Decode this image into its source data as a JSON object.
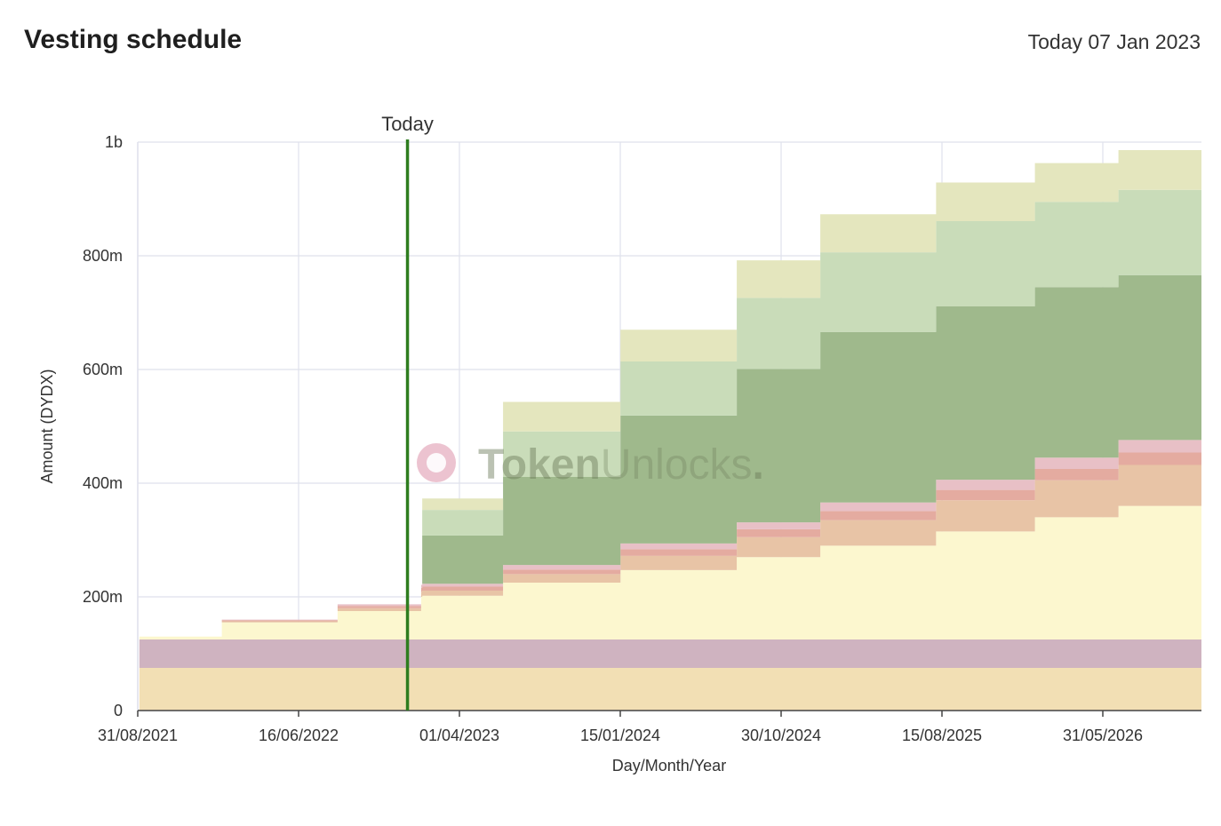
{
  "header": {
    "title": "Vesting schedule",
    "date_label": "Today 07 Jan 2023"
  },
  "watermark": {
    "part1": "Token",
    "part2": "Unlocks",
    "dot": "."
  },
  "chart_data": {
    "type": "area",
    "stacked": true,
    "step": true,
    "title": "",
    "xlabel": "Day/Month/Year",
    "ylabel": "Amount (DYDX)",
    "x_ticks": [
      "31/08/2021",
      "16/06/2022",
      "01/04/2023",
      "15/01/2024",
      "30/10/2024",
      "15/08/2025",
      "31/05/2026"
    ],
    "x_range": [
      "2021-08-31",
      "2026-12-31"
    ],
    "y_ticks": [
      {
        "value": 0,
        "label": "0"
      },
      {
        "value": 200000000,
        "label": "200m"
      },
      {
        "value": 400000000,
        "label": "400m"
      },
      {
        "value": 600000000,
        "label": "600m"
      },
      {
        "value": 800000000,
        "label": "800m"
      },
      {
        "value": 1000000000,
        "label": "1b"
      }
    ],
    "ylim": [
      0,
      1000000000
    ],
    "grid": true,
    "today_marker": {
      "label": "Today",
      "date": "2023-01-07",
      "color": "#2e7d1f"
    },
    "dates": [
      "2021-08-31",
      "2021-09-03",
      "2022-02-01",
      "2022-09-01",
      "2023-02-01",
      "2023-02-03",
      "2023-07-01",
      "2024-02-01",
      "2024-09-01",
      "2025-02-01",
      "2025-09-01",
      "2026-03-01",
      "2026-08-01",
      "2026-12-31"
    ],
    "series": [
      {
        "color": "#f2dfb4",
        "values": [
          0,
          75000000,
          75000000,
          75000000,
          75000000,
          75000000,
          75000000,
          75000000,
          75000000,
          75000000,
          75000000,
          75000000,
          75000000,
          75000000
        ]
      },
      {
        "color": "#cfb3c0",
        "values": [
          0,
          50000000,
          50000000,
          50000000,
          50000000,
          50000000,
          50000000,
          50000000,
          50000000,
          50000000,
          50000000,
          50000000,
          50000000,
          50000000
        ]
      },
      {
        "color": "#fcf7cf",
        "values": [
          0,
          5000000,
          30000000,
          50000000,
          75000000,
          77000000,
          100000000,
          122000000,
          145000000,
          165000000,
          190000000,
          215000000,
          235000000,
          250000000
        ]
      },
      {
        "color": "#e8c4a6",
        "values": [
          0,
          0,
          2000000,
          5000000,
          9000000,
          9000000,
          15000000,
          25000000,
          35000000,
          45000000,
          55000000,
          65000000,
          72000000,
          75000000
        ]
      },
      {
        "color": "#e4aba0",
        "values": [
          0,
          0,
          2000000,
          4000000,
          7000000,
          7000000,
          8000000,
          12000000,
          14000000,
          16000000,
          18000000,
          20000000,
          22000000,
          25000000
        ]
      },
      {
        "color": "#e8c0c6",
        "values": [
          0,
          0,
          1000000,
          3000000,
          5000000,
          5000000,
          8000000,
          10000000,
          12000000,
          15000000,
          18000000,
          20000000,
          22000000,
          25000000
        ]
      },
      {
        "color": "#9fb98c",
        "values": [
          0,
          0,
          0,
          0,
          0,
          85000000,
          155000000,
          225000000,
          270000000,
          300000000,
          305000000,
          300000000,
          290000000,
          280000000
        ]
      },
      {
        "color": "#c9dcb9",
        "values": [
          0,
          0,
          0,
          0,
          0,
          45000000,
          80000000,
          95000000,
          125000000,
          140000000,
          150000000,
          150000000,
          150000000,
          150000000
        ]
      },
      {
        "color": "#e4e6be",
        "values": [
          0,
          0,
          0,
          0,
          0,
          20000000,
          52000000,
          56000000,
          66000000,
          67000000,
          68000000,
          68000000,
          70000000,
          70000000
        ]
      }
    ]
  }
}
